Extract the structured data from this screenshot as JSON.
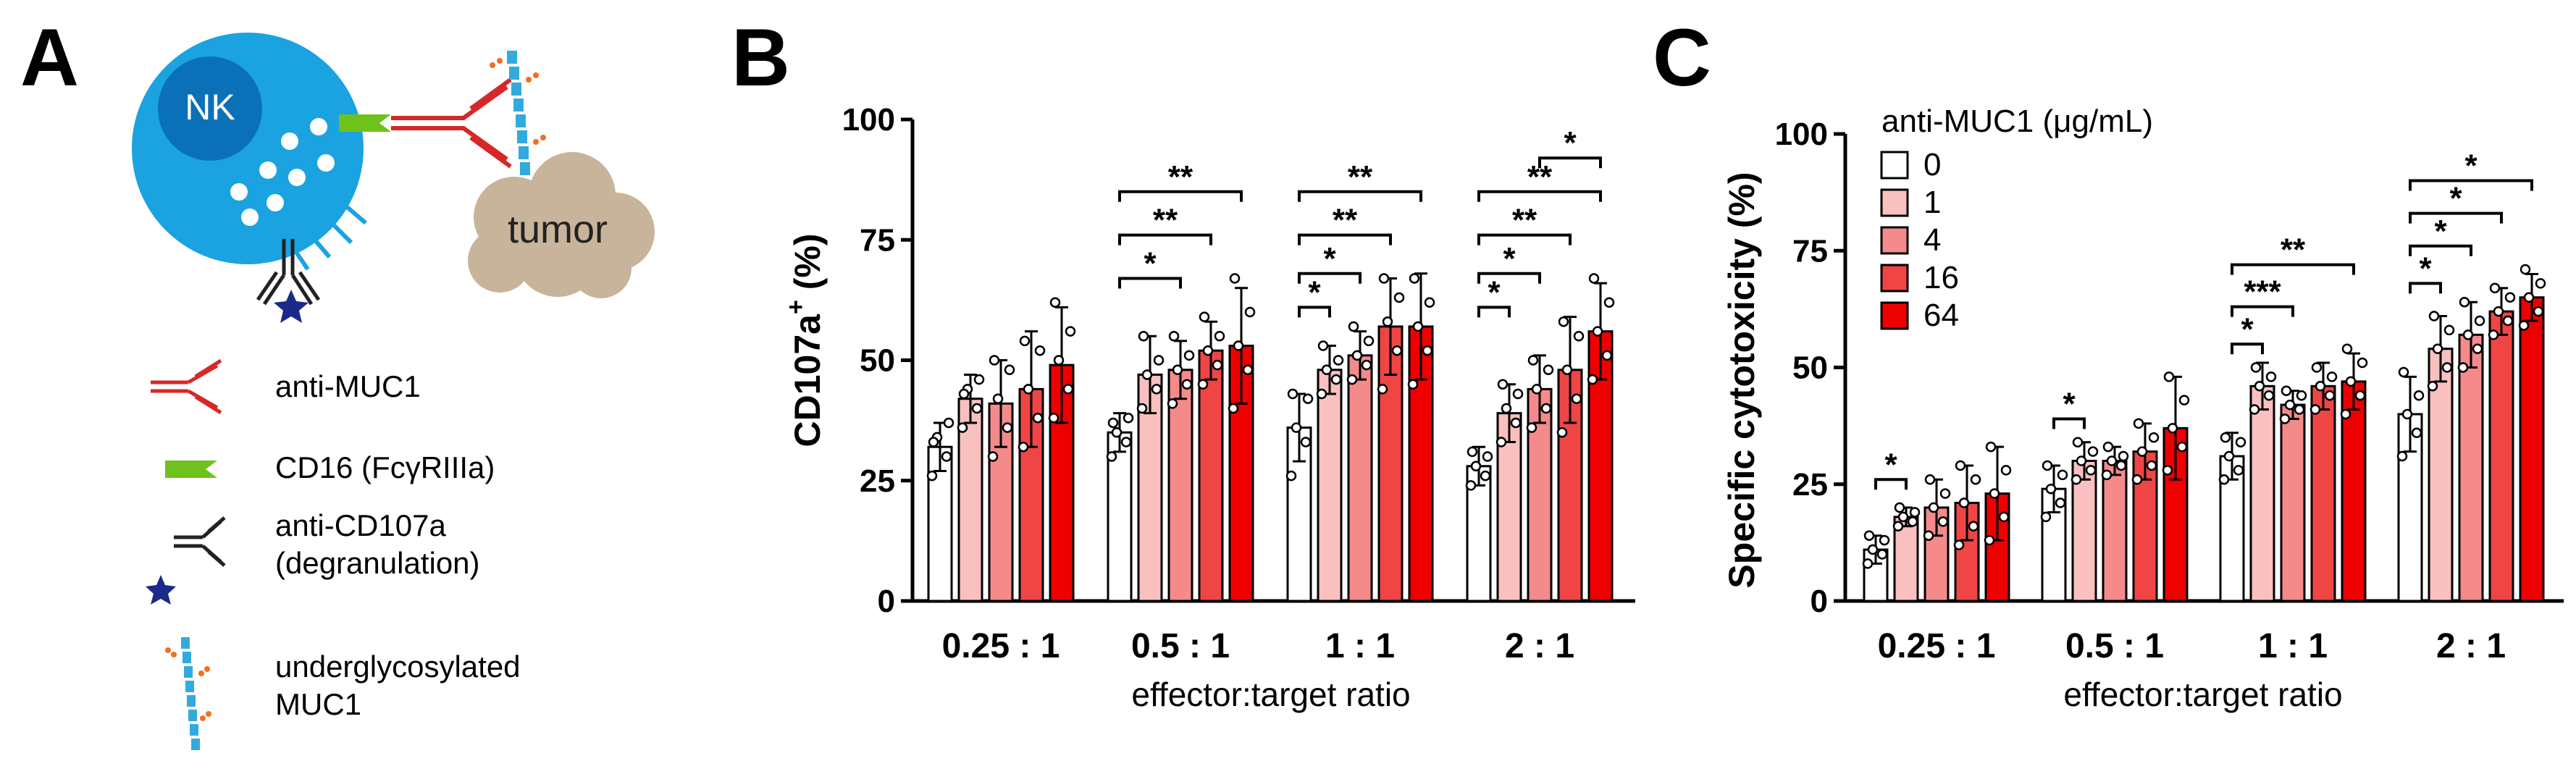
{
  "panels": {
    "a": "A",
    "b": "B",
    "c": "C"
  },
  "schematic": {
    "nk_label": "NK",
    "tumor_label": "tumor",
    "legend": [
      {
        "icon": "anti-muc1-icon",
        "lines": [
          "anti-MUC1"
        ]
      },
      {
        "icon": "cd16-icon",
        "lines": [
          "CD16 (FcγRIIIa)"
        ]
      },
      {
        "icon": "anti-cd107a-icon",
        "lines": [
          "anti-CD107a",
          "(degranulation)"
        ]
      },
      {
        "icon": "muc1-icon",
        "lines": [
          "underglycosylated",
          "MUC1"
        ]
      }
    ]
  },
  "colors": {
    "nk_outer": "#1aa3e0",
    "nk_inner": "#0a70b8",
    "tumor": "#c8b49a",
    "antibody_red": "#d62828",
    "cd16_green": "#6ec21b",
    "muc1_blue": "#33aadd",
    "glycan_orange": "#f07020",
    "star_blue": "#1a2a88",
    "series": [
      "#ffffff",
      "#f9c0c0",
      "#f48a8a",
      "#ef4545",
      "#ee0000"
    ]
  },
  "chart_data": [
    {
      "type": "bar",
      "panel": "B",
      "categories": [
        "0.25 : 1",
        "0.5 : 1",
        "1 : 1",
        "2 : 1"
      ],
      "xlabel": "effector:target ratio",
      "ylabel_main": "CD107a",
      "ylabel_sup": "+",
      "ylabel_tail": " (%)",
      "ylim": [
        0,
        100
      ],
      "yticks": [
        "0",
        "25",
        "50",
        "75",
        "100"
      ],
      "series": [
        {
          "name": "0",
          "values": [
            32,
            35,
            36,
            28
          ],
          "errors": [
            5,
            4,
            7,
            4
          ],
          "points": [
            [
              26,
              30,
              34,
              37,
              33
            ],
            [
              30,
              33,
              35,
              38,
              37
            ],
            [
              26,
              33,
              36,
              42,
              43
            ],
            [
              24,
              26,
              28,
              30,
              31
            ]
          ]
        },
        {
          "name": "1",
          "values": [
            42,
            47,
            48,
            39
          ],
          "errors": [
            5,
            8,
            5,
            6
          ],
          "points": [
            [
              36,
              40,
              44,
              46,
              43
            ],
            [
              40,
              44,
              47,
              50,
              55
            ],
            [
              43,
              46,
              48,
              50,
              53
            ],
            [
              33,
              37,
              40,
              43,
              45
            ]
          ]
        },
        {
          "name": "4",
          "values": [
            41,
            48,
            51,
            44
          ],
          "errors": [
            9,
            6,
            5,
            7
          ],
          "points": [
            [
              30,
              36,
              42,
              48,
              50
            ],
            [
              41,
              45,
              48,
              51,
              55
            ],
            [
              46,
              49,
              51,
              54,
              57
            ],
            [
              36,
              40,
              44,
              48,
              50
            ]
          ]
        },
        {
          "name": "16",
          "values": [
            44,
            52,
            57,
            48
          ],
          "errors": [
            12,
            6,
            10,
            11
          ],
          "points": [
            [
              32,
              38,
              44,
              52,
              54
            ],
            [
              45,
              49,
              52,
              55,
              59
            ],
            [
              44,
              52,
              58,
              63,
              67
            ],
            [
              35,
              42,
              48,
              55,
              58
            ]
          ]
        },
        {
          "name": "64",
          "values": [
            49,
            53,
            57,
            56
          ],
          "errors": [
            12,
            12,
            11,
            10
          ],
          "points": [
            [
              38,
              44,
              50,
              56,
              62
            ],
            [
              40,
              48,
              53,
              60,
              67
            ],
            [
              45,
              52,
              57,
              62,
              67
            ],
            [
              46,
              51,
              56,
              62,
              67
            ]
          ]
        }
      ],
      "significance": [
        {
          "group": 1,
          "from": 0,
          "to": 2,
          "level": 67,
          "label": "*"
        },
        {
          "group": 1,
          "from": 0,
          "to": 3,
          "level": 76,
          "label": "**"
        },
        {
          "group": 1,
          "from": 0,
          "to": 4,
          "level": 85,
          "label": "**"
        },
        {
          "group": 2,
          "from": 0,
          "to": 1,
          "level": 61,
          "label": "*"
        },
        {
          "group": 2,
          "from": 0,
          "to": 2,
          "level": 68,
          "label": "*"
        },
        {
          "group": 2,
          "from": 0,
          "to": 3,
          "level": 76,
          "label": "**"
        },
        {
          "group": 2,
          "from": 0,
          "to": 4,
          "level": 85,
          "label": "**"
        },
        {
          "group": 3,
          "from": 0,
          "to": 1,
          "level": 61,
          "label": "*"
        },
        {
          "group": 3,
          "from": 0,
          "to": 2,
          "level": 68,
          "label": "*"
        },
        {
          "group": 3,
          "from": 0,
          "to": 3,
          "level": 76,
          "label": "**"
        },
        {
          "group": 3,
          "from": 0,
          "to": 4,
          "level": 85,
          "label": "**"
        },
        {
          "group": 3,
          "from": 2,
          "to": 4,
          "level": 92,
          "label": "*"
        }
      ]
    },
    {
      "type": "bar",
      "panel": "C",
      "categories": [
        "0.25 : 1",
        "0.5 : 1",
        "1 : 1",
        "2 : 1"
      ],
      "xlabel": "effector:target ratio",
      "ylabel": "Specific cytotoxicity (%)",
      "ylim": [
        0,
        100
      ],
      "yticks": [
        "0",
        "25",
        "50",
        "75",
        "100"
      ],
      "legend": {
        "title": "anti-MUC1 (μg/mL)",
        "placement": "top-left"
      },
      "series": [
        {
          "name": "0",
          "values": [
            11,
            24,
            31,
            40
          ],
          "errors": [
            3,
            5,
            5,
            8
          ],
          "points": [
            [
              8,
              10,
              11,
              13,
              14
            ],
            [
              18,
              21,
              24,
              27,
              29
            ],
            [
              26,
              28,
              31,
              34,
              35
            ],
            [
              31,
              36,
              40,
              44,
              49
            ]
          ]
        },
        {
          "name": "1",
          "values": [
            18,
            30,
            46,
            54
          ],
          "errors": [
            2,
            4,
            5,
            7
          ],
          "points": [
            [
              16,
              17,
              18,
              19,
              20
            ],
            [
              26,
              28,
              30,
              32,
              34
            ],
            [
              41,
              44,
              46,
              48,
              50
            ],
            [
              46,
              50,
              54,
              58,
              61
            ]
          ]
        },
        {
          "name": "4",
          "values": [
            20,
            30,
            42,
            57
          ],
          "errors": [
            6,
            3,
            3,
            7
          ],
          "points": [
            [
              14,
              17,
              20,
              23,
              26
            ],
            [
              27,
              29,
              30,
              31,
              33
            ],
            [
              39,
              41,
              42,
              44,
              45
            ],
            [
              50,
              54,
              57,
              60,
              64
            ]
          ]
        },
        {
          "name": "16",
          "values": [
            21,
            32,
            46,
            62
          ],
          "errors": [
            8,
            6,
            5,
            5
          ],
          "points": [
            [
              12,
              16,
              21,
              26,
              29
            ],
            [
              26,
              29,
              32,
              35,
              38
            ],
            [
              41,
              44,
              46,
              48,
              50
            ],
            [
              57,
              60,
              62,
              65,
              67
            ]
          ]
        },
        {
          "name": "64",
          "values": [
            23,
            37,
            47,
            65
          ],
          "errors": [
            10,
            11,
            6,
            5
          ],
          "points": [
            [
              13,
              18,
              23,
              28,
              33
            ],
            [
              28,
              33,
              37,
              43,
              48
            ],
            [
              40,
              44,
              47,
              51,
              54
            ],
            [
              59,
              62,
              65,
              68,
              71
            ]
          ]
        }
      ],
      "significance": [
        {
          "group": 0,
          "from": 0,
          "to": 1,
          "level": 26,
          "label": "*"
        },
        {
          "group": 1,
          "from": 0,
          "to": 1,
          "level": 39,
          "label": "*"
        },
        {
          "group": 2,
          "from": 0,
          "to": 1,
          "level": 55,
          "label": "*"
        },
        {
          "group": 2,
          "from": 0,
          "to": 2,
          "level": 63,
          "label": "***"
        },
        {
          "group": 2,
          "from": 0,
          "to": 4,
          "level": 72,
          "label": "**"
        },
        {
          "group": 3,
          "from": 0,
          "to": 1,
          "level": 68,
          "label": "*"
        },
        {
          "group": 3,
          "from": 0,
          "to": 2,
          "level": 76,
          "label": "*"
        },
        {
          "group": 3,
          "from": 0,
          "to": 3,
          "level": 83,
          "label": "*"
        },
        {
          "group": 3,
          "from": 0,
          "to": 4,
          "level": 90,
          "label": "*"
        }
      ]
    }
  ]
}
